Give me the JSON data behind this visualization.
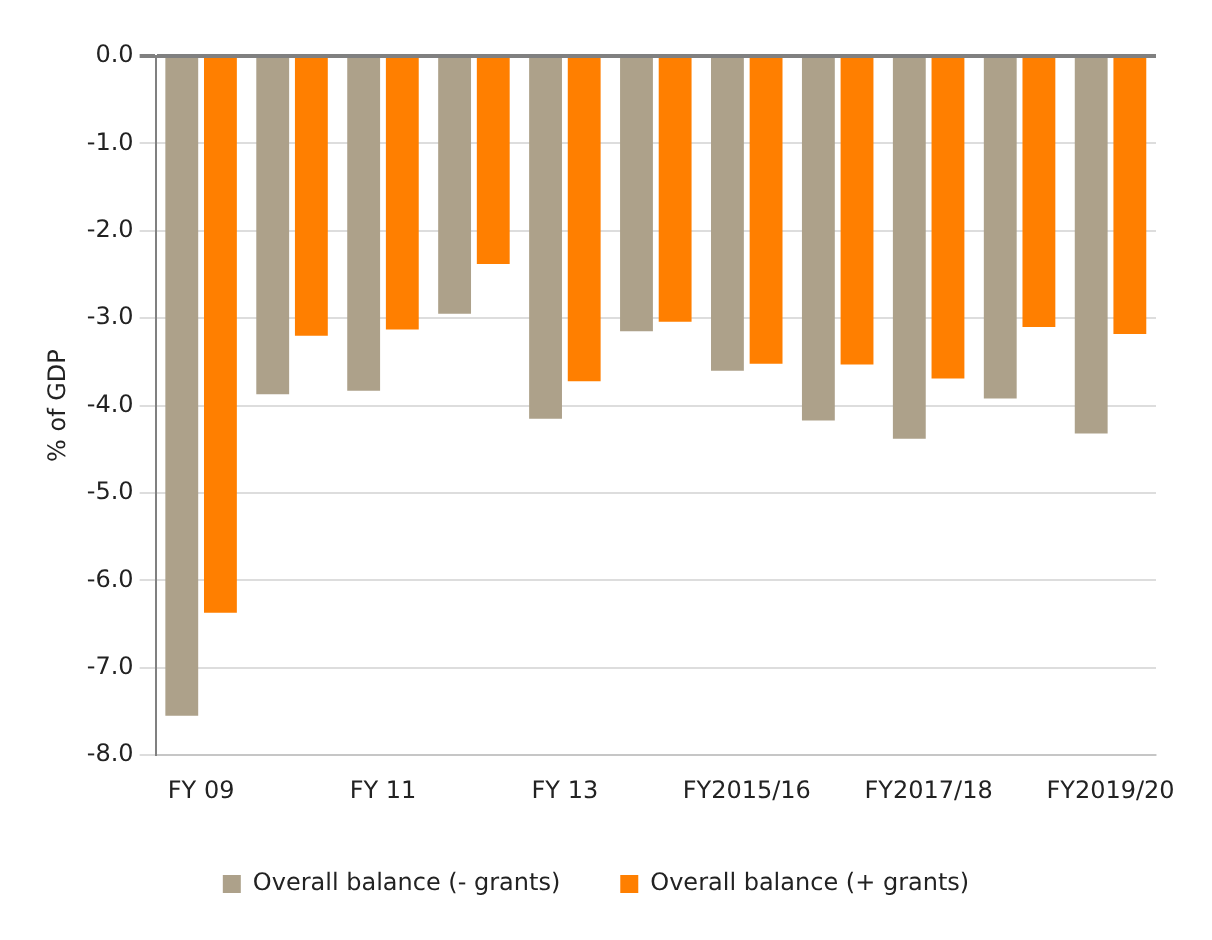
{
  "chart_data": {
    "type": "bar",
    "ylabel": "% of GDP",
    "categories": [
      "FY 09",
      null,
      "FY 11",
      null,
      "FY 13",
      null,
      "FY2015/16",
      null,
      "FY2017/18",
      null,
      "FY2019/20"
    ],
    "series": [
      {
        "name": "Overall balance (- grants)",
        "color": "#ada18a",
        "values": [
          -7.55,
          -3.87,
          -3.83,
          -2.95,
          -4.15,
          -3.15,
          -3.6,
          -4.17,
          -4.38,
          -3.92,
          -4.32
        ]
      },
      {
        "name": "Overall balance (+ grants)",
        "color": "#ff7f00",
        "values": [
          -6.37,
          -3.2,
          -3.13,
          -2.38,
          -3.72,
          -3.04,
          -3.52,
          -3.53,
          -3.69,
          -3.1,
          -3.18
        ]
      }
    ],
    "ylim": [
      -8,
      0
    ],
    "yticks": [
      {
        "value": -8,
        "label": "-8.0"
      },
      {
        "value": -7,
        "label": "-7.0"
      },
      {
        "value": -6,
        "label": "-6.0"
      },
      {
        "value": -5,
        "label": "-5.0"
      },
      {
        "value": -4,
        "label": "-4.0"
      },
      {
        "value": -3,
        "label": "-3.0"
      },
      {
        "value": -2,
        "label": "-2.0"
      },
      {
        "value": -1,
        "label": "-1.0"
      },
      {
        "value": 0,
        "label": "0.0"
      }
    ],
    "grid": "y",
    "legend": "bottom"
  }
}
